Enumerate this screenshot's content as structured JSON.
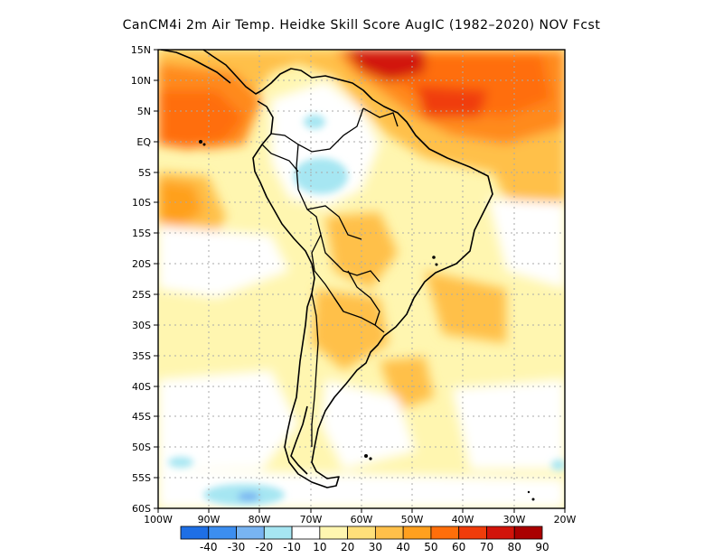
{
  "title": "CanCM4i  2m Air Temp. Heidke Skill Score AugIC (1982–2020) NOV Fcst",
  "map": {
    "lon_range": [
      -100,
      -20
    ],
    "lat_range": [
      -60,
      15
    ],
    "y_tick_labels": [
      "15N",
      "10N",
      "5N",
      "EQ",
      "5S",
      "10S",
      "15S",
      "20S",
      "25S",
      "30S",
      "35S",
      "40S",
      "45S",
      "50S",
      "55S",
      "60S"
    ],
    "x_tick_labels": [
      "100W",
      "90W",
      "80W",
      "70W",
      "60W",
      "50W",
      "40W",
      "30W",
      "20W"
    ],
    "grid": true
  },
  "colorbar": {
    "labels": [
      "-40",
      "-30",
      "-20",
      "-10",
      "10",
      "20",
      "30",
      "40",
      "50",
      "60",
      "70",
      "80",
      "90"
    ],
    "colors": [
      "#1e6fe6",
      "#3c8ef0",
      "#78b4f2",
      "#a6e6f2",
      "#ffffff",
      "#fff6b0",
      "#ffe07a",
      "#ffc04a",
      "#ffa01e",
      "#ff6e0a",
      "#f03c0a",
      "#d2140a",
      "#aa0000"
    ]
  }
}
